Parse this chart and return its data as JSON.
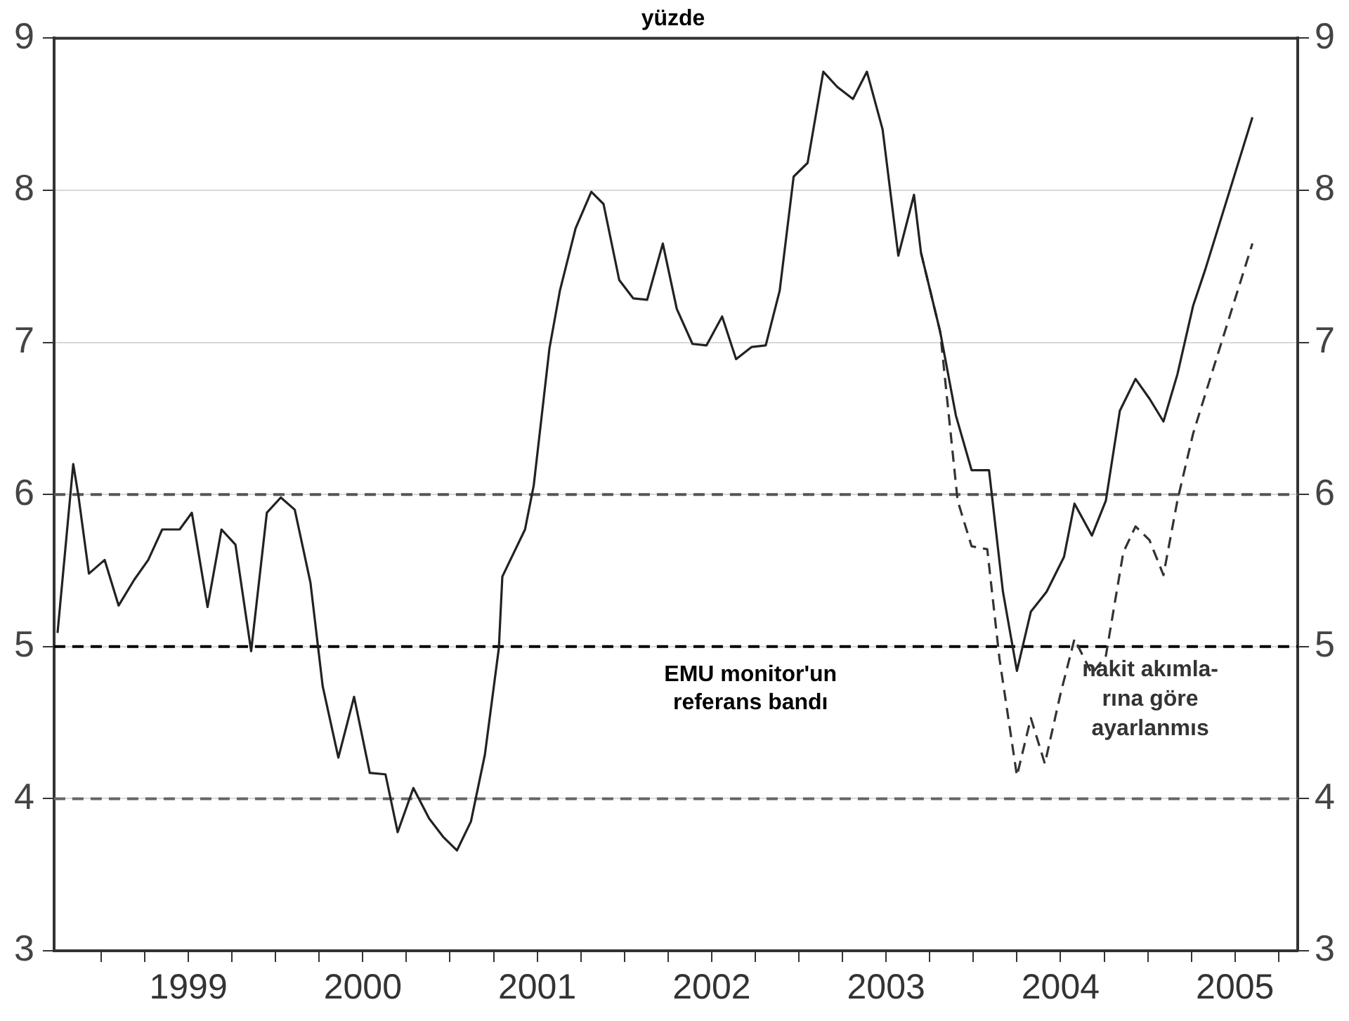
{
  "chart_data": {
    "type": "line",
    "title": "yüzde",
    "xlim": [
      1998.73,
      2005.86
    ],
    "xticks": [
      {
        "value": 1999,
        "label": null
      },
      {
        "value": 1999.25,
        "label": null
      },
      {
        "value": 1999.5,
        "label": "1999"
      },
      {
        "value": 1999.75,
        "label": null
      },
      {
        "value": 2000,
        "label": null
      },
      {
        "value": 2000.25,
        "label": null
      },
      {
        "value": 2000.5,
        "label": "2000"
      },
      {
        "value": 2000.75,
        "label": null
      },
      {
        "value": 2001,
        "label": null
      },
      {
        "value": 2001.25,
        "label": null
      },
      {
        "value": 2001.5,
        "label": "2001"
      },
      {
        "value": 2001.75,
        "label": null
      },
      {
        "value": 2002,
        "label": null
      },
      {
        "value": 2002.25,
        "label": null
      },
      {
        "value": 2002.5,
        "label": "2002"
      },
      {
        "value": 2002.75,
        "label": null
      },
      {
        "value": 2003,
        "label": null
      },
      {
        "value": 2003.25,
        "label": null
      },
      {
        "value": 2003.5,
        "label": "2003"
      },
      {
        "value": 2003.75,
        "label": null
      },
      {
        "value": 2004,
        "label": null
      },
      {
        "value": 2004.25,
        "label": null
      },
      {
        "value": 2004.5,
        "label": "2004"
      },
      {
        "value": 2004.75,
        "label": null
      },
      {
        "value": 2005,
        "label": null
      },
      {
        "value": 2005.25,
        "label": null
      },
      {
        "value": 2005.5,
        "label": "2005"
      },
      {
        "value": 2005.75,
        "label": null
      }
    ],
    "ylim": [
      3,
      9
    ],
    "yticks": [
      3,
      4,
      5,
      6,
      7,
      8,
      9
    ],
    "y2lim": [
      3,
      9
    ],
    "y2ticks": [
      3,
      4,
      5,
      6,
      7,
      8,
      9
    ],
    "grid": "y",
    "legend": false,
    "marker": "none",
    "series": [
      {
        "color": "#222222",
        "line_style": "solid",
        "x": [
          1998.75,
          1998.84,
          1998.87,
          1998.93,
          1999.02,
          1999.1,
          1999.19,
          1999.27,
          1999.35,
          1999.45,
          1999.52,
          1999.61,
          1999.69,
          1999.77,
          1999.86,
          1999.95,
          2000.03,
          2000.11,
          2000.2,
          2000.27,
          2000.36,
          2000.45,
          2000.54,
          2000.63,
          2000.7,
          2000.79,
          2000.88,
          2000.96,
          2001.04,
          2001.12,
          2001.2,
          2001.28,
          2001.3,
          2001.43,
          2001.48,
          2001.57,
          2001.63,
          2001.72,
          2001.81,
          2001.88,
          2001.97,
          2002.05,
          2002.13,
          2002.22,
          2002.3,
          2002.39,
          2002.47,
          2002.56,
          2002.64,
          2002.73,
          2002.81,
          2002.89,
          2002.97,
          2003.05,
          2003.14,
          2003.22,
          2003.31,
          2003.39,
          2003.48,
          2003.57,
          2003.66,
          2003.7,
          2003.81,
          2003.9,
          2003.99,
          2004.09,
          2004.17,
          2004.25,
          2004.33,
          2004.42,
          2004.52,
          2004.58,
          2004.68,
          2004.76,
          2004.84,
          2004.93,
          2005.01,
          2005.09,
          2005.17,
          2005.26,
          2005.33,
          2005.6
        ],
        "values": [
          5.09,
          6.2,
          5.99,
          5.48,
          5.57,
          5.27,
          5.44,
          5.57,
          5.77,
          5.77,
          5.88,
          5.26,
          5.77,
          5.67,
          4.97,
          5.88,
          5.98,
          5.9,
          5.42,
          4.74,
          4.27,
          4.67,
          4.17,
          4.16,
          3.78,
          4.07,
          3.87,
          3.75,
          3.66,
          3.85,
          4.29,
          4.99,
          5.46,
          5.77,
          6.06,
          6.96,
          7.34,
          7.75,
          7.99,
          7.91,
          7.41,
          7.29,
          7.28,
          7.65,
          7.22,
          6.99,
          6.98,
          7.17,
          6.89,
          6.97,
          6.98,
          7.34,
          8.09,
          8.18,
          8.78,
          8.68,
          8.6,
          8.78,
          8.4,
          7.57,
          7.97,
          7.59,
          7.07,
          6.52,
          6.16,
          6.16,
          5.36,
          4.84,
          5.23,
          5.36,
          5.59,
          5.94,
          5.73,
          5.96,
          6.55,
          6.76,
          6.63,
          6.48,
          6.79,
          7.24,
          7.48,
          8.48
        ]
      },
      {
        "name": "nakit akımla-\nrına göre\nayarlanmıs",
        "color": "#333333",
        "line_style": "dashed",
        "x": [
          2003.7,
          2003.81,
          2003.91,
          2003.99,
          2004.08,
          2004.15,
          2004.25,
          2004.33,
          2004.41,
          2004.5,
          2004.58,
          2004.68,
          2004.76,
          2004.86,
          2004.93,
          2005.01,
          2005.09,
          2005.17,
          2005.26,
          2005.33,
          2005.6
        ],
        "values": [
          7.59,
          7.07,
          5.96,
          5.66,
          5.64,
          4.92,
          4.15,
          4.53,
          4.23,
          4.69,
          5.05,
          4.82,
          4.94,
          5.62,
          5.79,
          5.7,
          5.47,
          5.96,
          6.4,
          6.66,
          7.65
        ]
      }
    ],
    "ref_lines": [
      {
        "axis": "y",
        "value": 6,
        "color": "#555555",
        "line_style": "dashed"
      },
      {
        "axis": "y",
        "value": 5,
        "label": "EMU monitor'un\nreferans bandı",
        "color": "#000000",
        "line_style": "dashed"
      },
      {
        "axis": "y",
        "value": 4,
        "color": "#666666",
        "line_style": "dashed"
      }
    ]
  }
}
